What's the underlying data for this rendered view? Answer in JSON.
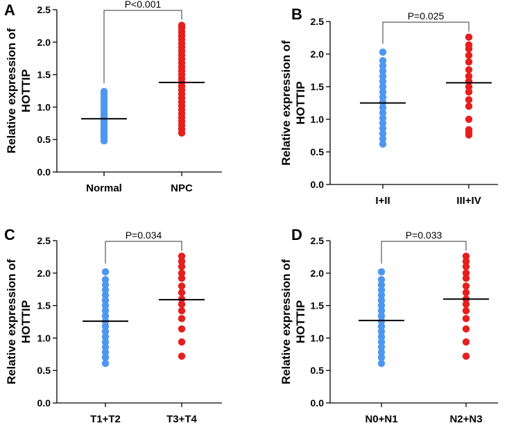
{
  "figure": {
    "ylabel_line1": "Relative expression of",
    "ylabel_line2": "HOTTIP",
    "colors": {
      "group1": "#4d97f0",
      "group2": "#e61e1e",
      "axis": "#000000"
    }
  },
  "chart_data": [
    {
      "panel": "A",
      "type": "scatter",
      "ylim": [
        0,
        2.5
      ],
      "yticks": [
        "0.0",
        "0.5",
        "1.0",
        "1.5",
        "2.0",
        "2.5"
      ],
      "categories": [
        "Normal",
        "NPC"
      ],
      "significance": "P<0.001",
      "series": [
        {
          "name": "Normal",
          "mean": 0.82,
          "values": [
            0.48,
            0.52,
            0.55,
            0.58,
            0.62,
            0.66,
            0.7,
            0.74,
            0.78,
            0.82,
            0.86,
            0.9,
            0.95,
            1.0,
            1.05,
            1.1,
            1.15,
            1.2,
            1.24
          ]
        },
        {
          "name": "NPC",
          "mean": 1.38,
          "values": [
            0.6,
            0.66,
            0.72,
            0.78,
            0.84,
            0.9,
            0.96,
            1.02,
            1.08,
            1.14,
            1.2,
            1.26,
            1.32,
            1.38,
            1.44,
            1.5,
            1.56,
            1.62,
            1.68,
            1.74,
            1.8,
            1.86,
            1.92,
            1.98,
            2.04,
            2.1,
            2.16,
            2.22,
            2.26
          ]
        }
      ]
    },
    {
      "panel": "B",
      "type": "scatter",
      "ylim": [
        0,
        2.5
      ],
      "yticks": [
        "0.0",
        "0.5",
        "1.0",
        "1.5",
        "2.0",
        "2.5"
      ],
      "categories": [
        "I+II",
        "III+IV"
      ],
      "significance": "P=0.025",
      "series": [
        {
          "name": "I+II",
          "mean": 1.25,
          "values": [
            0.62,
            0.7,
            0.78,
            0.86,
            0.94,
            1.02,
            1.1,
            1.18,
            1.26,
            1.34,
            1.42,
            1.5,
            1.58,
            1.66,
            1.74,
            1.82,
            1.9,
            2.03
          ]
        },
        {
          "name": "III+IV",
          "mean": 1.56,
          "values": [
            0.76,
            0.8,
            0.84,
            1.0,
            1.2,
            1.3,
            1.42,
            1.5,
            1.58,
            1.66,
            1.76,
            1.88,
            1.98,
            2.08,
            2.14,
            2.26
          ]
        }
      ]
    },
    {
      "panel": "C",
      "type": "scatter",
      "ylim": [
        0,
        2.5
      ],
      "yticks": [
        "0.0",
        "0.5",
        "1.0",
        "1.5",
        "2.0",
        "2.5"
      ],
      "categories": [
        "T1+T2",
        "T3+T4"
      ],
      "significance": "P=0.034",
      "series": [
        {
          "name": "T1+T2",
          "mean": 1.26,
          "values": [
            0.61,
            0.7,
            0.78,
            0.86,
            0.94,
            1.02,
            1.1,
            1.18,
            1.26,
            1.34,
            1.42,
            1.5,
            1.58,
            1.66,
            1.74,
            1.82,
            1.9,
            2.02
          ]
        },
        {
          "name": "T3+T4",
          "mean": 1.59,
          "values": [
            0.72,
            0.94,
            1.14,
            1.3,
            1.42,
            1.52,
            1.6,
            1.7,
            1.8,
            1.92,
            2.0,
            2.1,
            2.18,
            2.26
          ]
        }
      ]
    },
    {
      "panel": "D",
      "type": "scatter",
      "ylim": [
        0,
        2.5
      ],
      "yticks": [
        "0.0",
        "0.5",
        "1.0",
        "1.5",
        "2.0",
        "2.5"
      ],
      "categories": [
        "N0+N1",
        "N2+N3"
      ],
      "significance": "P=0.033",
      "series": [
        {
          "name": "N0+N1",
          "mean": 1.27,
          "values": [
            0.61,
            0.7,
            0.78,
            0.86,
            0.94,
            1.02,
            1.1,
            1.18,
            1.26,
            1.34,
            1.42,
            1.5,
            1.58,
            1.66,
            1.74,
            1.82,
            1.9,
            2.02
          ]
        },
        {
          "name": "N2+N3",
          "mean": 1.6,
          "values": [
            0.72,
            0.94,
            1.14,
            1.3,
            1.42,
            1.52,
            1.6,
            1.7,
            1.8,
            1.92,
            2.0,
            2.1,
            2.18,
            2.26
          ]
        }
      ]
    }
  ]
}
